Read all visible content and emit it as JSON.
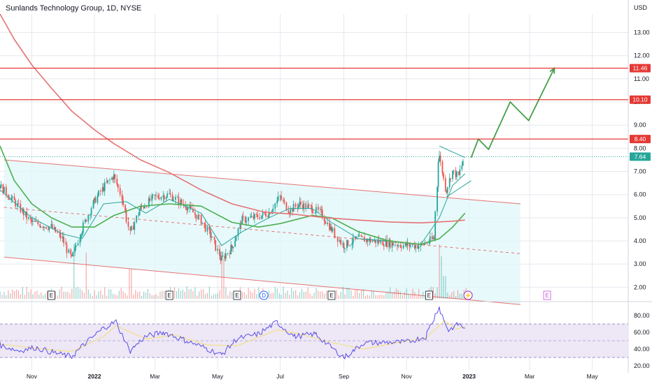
{
  "header": {
    "title": "Sunlands Technology Group, 1D, NYSE",
    "currency": "USD"
  },
  "colors": {
    "up": "#26a69a",
    "down": "#ef5350",
    "sma_short": "#26a69a",
    "ema_long": "#e57373",
    "sma_mid": "#4caf50",
    "resistance": "#e53935",
    "channel_fill": "#e0f7fa",
    "channel_line": "#e57373",
    "projection": "#43a047",
    "rsi": "#5c4ee5",
    "rsi_ma": "#f2e08a",
    "rsi_band": "#ede7f6",
    "grid": "#e6e8ee",
    "axis_text": "#131722",
    "current_tag": "#26a69a",
    "level_tag": "#e53935"
  },
  "chart_data": [
    {
      "type": "candlestick",
      "title": "Sunlands Technology Group, 1D, NYSE",
      "ylabel": "USD",
      "ylim": [
        1.5,
        13.8
      ],
      "xlim": [
        "2021-10-01",
        "2023-06-05"
      ],
      "x_ticks": [
        {
          "date": "2021-11-01",
          "label": "Nov"
        },
        {
          "date": "2022-01-01",
          "label": "2022"
        },
        {
          "date": "2022-03-01",
          "label": "Mar"
        },
        {
          "date": "2022-05-01",
          "label": "May"
        },
        {
          "date": "2022-07-01",
          "label": "Jul"
        },
        {
          "date": "2022-09-01",
          "label": "Sep"
        },
        {
          "date": "2022-11-01",
          "label": "Nov"
        },
        {
          "date": "2023-01-01",
          "label": "2023"
        },
        {
          "date": "2023-03-01",
          "label": "Mar"
        },
        {
          "date": "2023-05-01",
          "label": "May"
        }
      ],
      "y_ticks": [
        2.0,
        3.0,
        4.0,
        5.0,
        6.0,
        7.0,
        8.0,
        9.0,
        10.0,
        11.0,
        12.0,
        13.0
      ],
      "grid": true,
      "series": [
        {
          "kind": "close",
          "points": [
            [
              "2021-10-01",
              6.4
            ],
            [
              "2021-10-15",
              5.7
            ],
            [
              "2021-11-01",
              4.8
            ],
            [
              "2021-11-20",
              4.6
            ],
            [
              "2021-12-01",
              4.1
            ],
            [
              "2021-12-10",
              3.2
            ],
            [
              "2021-12-20",
              4.5
            ],
            [
              "2022-01-01",
              5.7
            ],
            [
              "2022-01-10",
              6.3
            ],
            [
              "2022-01-20",
              6.8
            ],
            [
              "2022-01-28",
              5.9
            ],
            [
              "2022-02-05",
              4.3
            ],
            [
              "2022-02-15",
              5.4
            ],
            [
              "2022-03-01",
              5.9
            ],
            [
              "2022-03-15",
              6.0
            ],
            [
              "2022-04-01",
              5.5
            ],
            [
              "2022-04-15",
              4.9
            ],
            [
              "2022-04-25",
              4.2
            ],
            [
              "2022-05-05",
              3.2
            ],
            [
              "2022-05-15",
              3.7
            ],
            [
              "2022-05-25",
              4.9
            ],
            [
              "2022-06-05",
              5.0
            ],
            [
              "2022-06-20",
              5.2
            ],
            [
              "2022-07-01",
              5.9
            ],
            [
              "2022-07-10",
              5.3
            ],
            [
              "2022-07-20",
              5.6
            ],
            [
              "2022-08-01",
              5.4
            ],
            [
              "2022-08-10",
              5.2
            ],
            [
              "2022-08-20",
              4.5
            ],
            [
              "2022-09-01",
              3.8
            ],
            [
              "2022-09-15",
              4.1
            ],
            [
              "2022-10-01",
              4.0
            ],
            [
              "2022-10-15",
              3.9
            ],
            [
              "2022-11-01",
              3.8
            ],
            [
              "2022-11-15",
              3.8
            ],
            [
              "2022-11-28",
              4.1
            ],
            [
              "2022-12-03",
              7.7
            ],
            [
              "2022-12-10",
              6.2
            ],
            [
              "2022-12-16",
              7.0
            ],
            [
              "2022-12-22",
              6.8
            ],
            [
              "2022-12-28",
              7.64
            ]
          ]
        },
        {
          "kind": "sma_short",
          "points": [
            [
              "2021-10-01",
              6.2
            ],
            [
              "2021-11-01",
              5.0
            ],
            [
              "2021-12-01",
              4.3
            ],
            [
              "2021-12-20",
              4.1
            ],
            [
              "2022-01-10",
              5.6
            ],
            [
              "2022-02-01",
              5.7
            ],
            [
              "2022-02-20",
              5.2
            ],
            [
              "2022-03-15",
              5.8
            ],
            [
              "2022-04-15",
              5.2
            ],
            [
              "2022-05-05",
              3.8
            ],
            [
              "2022-05-25",
              4.4
            ],
            [
              "2022-06-20",
              5.0
            ],
            [
              "2022-07-10",
              5.4
            ],
            [
              "2022-08-01",
              5.4
            ],
            [
              "2022-08-20",
              4.8
            ],
            [
              "2022-09-15",
              4.1
            ],
            [
              "2022-10-15",
              4.0
            ],
            [
              "2022-11-15",
              3.85
            ],
            [
              "2022-12-03",
              5.0
            ],
            [
              "2022-12-16",
              6.4
            ],
            [
              "2022-12-28",
              6.9
            ]
          ]
        },
        {
          "kind": "sma_mid",
          "points": [
            [
              "2021-10-01",
              8.1
            ],
            [
              "2021-10-15",
              6.6
            ],
            [
              "2021-11-01",
              5.6
            ],
            [
              "2021-11-20",
              5.0
            ],
            [
              "2021-12-10",
              4.6
            ],
            [
              "2022-01-01",
              4.6
            ],
            [
              "2022-01-20",
              5.1
            ],
            [
              "2022-02-15",
              5.5
            ],
            [
              "2022-03-15",
              5.6
            ],
            [
              "2022-04-15",
              5.5
            ],
            [
              "2022-05-15",
              4.8
            ],
            [
              "2022-06-10",
              4.6
            ],
            [
              "2022-07-01",
              4.75
            ],
            [
              "2022-08-01",
              5.1
            ],
            [
              "2022-08-20",
              5.0
            ],
            [
              "2022-09-15",
              4.4
            ],
            [
              "2022-10-15",
              4.0
            ],
            [
              "2022-11-15",
              3.85
            ],
            [
              "2022-12-03",
              4.1
            ],
            [
              "2022-12-16",
              4.6
            ],
            [
              "2022-12-28",
              5.2
            ]
          ]
        },
        {
          "kind": "ema_long",
          "points": [
            [
              "2021-10-01",
              13.8
            ],
            [
              "2021-10-15",
              12.7
            ],
            [
              "2021-11-01",
              11.6
            ],
            [
              "2021-11-20",
              10.6
            ],
            [
              "2021-12-10",
              9.6
            ],
            [
              "2022-01-01",
              8.8
            ],
            [
              "2022-01-20",
              8.2
            ],
            [
              "2022-02-15",
              7.5
            ],
            [
              "2022-03-15",
              6.95
            ],
            [
              "2022-04-15",
              6.2
            ],
            [
              "2022-05-15",
              5.6
            ],
            [
              "2022-06-15",
              5.25
            ],
            [
              "2022-07-15",
              5.15
            ],
            [
              "2022-08-15",
              5.0
            ],
            [
              "2022-09-15",
              4.9
            ],
            [
              "2022-10-15",
              4.82
            ],
            [
              "2022-11-15",
              4.78
            ],
            [
              "2022-12-15",
              4.85
            ],
            [
              "2022-12-28",
              4.9
            ]
          ]
        }
      ],
      "horizontal_levels": [
        {
          "value": 11.46,
          "label": "11.46"
        },
        {
          "value": 10.1,
          "label": "10.10"
        },
        {
          "value": 8.4,
          "label": "8.40"
        }
      ],
      "current_price": {
        "value": 7.64,
        "label": "7.64"
      },
      "channel": {
        "upper": [
          [
            "2021-10-05",
            7.5
          ],
          [
            "2023-02-20",
            5.6
          ]
        ],
        "middle": [
          [
            "2021-10-05",
            5.45
          ],
          [
            "2023-02-20",
            3.45
          ]
        ],
        "lower": [
          [
            "2021-10-05",
            3.3
          ],
          [
            "2023-02-20",
            1.25
          ]
        ]
      },
      "triangle": {
        "upper": [
          [
            "2022-12-03",
            8.1
          ],
          [
            "2022-12-28",
            7.6
          ]
        ],
        "lower": [
          [
            "2022-12-10",
            5.9
          ],
          [
            "2023-01-03",
            6.6
          ]
        ]
      },
      "projection": [
        [
          "2023-01-03",
          7.6
        ],
        [
          "2023-01-10",
          8.4
        ],
        [
          "2023-01-20",
          7.95
        ],
        [
          "2023-02-10",
          10.0
        ],
        [
          "2023-02-28",
          9.2
        ],
        [
          "2023-03-25",
          11.46
        ]
      ],
      "volume_spikes": [
        [
          "2021-12-12",
          1.0
        ],
        [
          "2021-12-24",
          0.85
        ],
        [
          "2022-02-05",
          0.55
        ],
        [
          "2022-05-06",
          0.75
        ],
        [
          "2022-12-03",
          1.0
        ],
        [
          "2022-12-05",
          0.78
        ],
        [
          "2022-12-08",
          0.42
        ]
      ],
      "event_markers": [
        {
          "date": "2021-11-20",
          "label": "E"
        },
        {
          "date": "2022-03-15",
          "label": "E"
        },
        {
          "date": "2022-05-20",
          "label": "E"
        },
        {
          "date": "2022-06-15",
          "label": "D"
        },
        {
          "date": "2022-08-20",
          "label": "E"
        },
        {
          "date": "2022-11-23",
          "label": "E"
        },
        {
          "date": "2022-12-31",
          "label": "⚡"
        },
        {
          "date": "2023-03-18",
          "label": "E"
        }
      ]
    },
    {
      "type": "line",
      "ylim": [
        15,
        90
      ],
      "y_ticks": [
        20.0,
        40.0,
        60.0,
        80.0
      ],
      "bands": [
        70,
        50,
        30
      ],
      "series": [
        {
          "kind": "rsi",
          "points": [
            [
              "2021-10-01",
              45
            ],
            [
              "2021-10-20",
              38
            ],
            [
              "2021-11-05",
              42
            ],
            [
              "2021-11-25",
              35
            ],
            [
              "2021-12-10",
              31
            ],
            [
              "2021-12-22",
              45
            ],
            [
              "2022-01-10",
              65
            ],
            [
              "2022-01-22",
              73
            ],
            [
              "2022-02-05",
              38
            ],
            [
              "2022-02-20",
              55
            ],
            [
              "2022-03-10",
              60
            ],
            [
              "2022-04-01",
              50
            ],
            [
              "2022-04-20",
              41
            ],
            [
              "2022-05-05",
              33
            ],
            [
              "2022-05-20",
              52
            ],
            [
              "2022-06-10",
              58
            ],
            [
              "2022-06-28",
              72
            ],
            [
              "2022-07-15",
              55
            ],
            [
              "2022-08-05",
              58
            ],
            [
              "2022-08-20",
              42
            ],
            [
              "2022-09-02",
              30
            ],
            [
              "2022-09-20",
              47
            ],
            [
              "2022-10-10",
              48
            ],
            [
              "2022-11-01",
              48
            ],
            [
              "2022-11-20",
              55
            ],
            [
              "2022-12-03",
              90
            ],
            [
              "2022-12-12",
              62
            ],
            [
              "2022-12-22",
              70
            ],
            [
              "2022-12-28",
              65
            ]
          ]
        },
        {
          "kind": "rsi_ma",
          "points": [
            [
              "2021-10-01",
              46
            ],
            [
              "2021-11-05",
              41
            ],
            [
              "2021-12-10",
              37
            ],
            [
              "2022-01-10",
              55
            ],
            [
              "2022-01-22",
              68
            ],
            [
              "2022-02-20",
              52
            ],
            [
              "2022-03-20",
              57
            ],
            [
              "2022-04-20",
              45
            ],
            [
              "2022-05-20",
              44
            ],
            [
              "2022-06-28",
              63
            ],
            [
              "2022-07-20",
              58
            ],
            [
              "2022-08-20",
              48
            ],
            [
              "2022-09-20",
              40
            ],
            [
              "2022-10-20",
              47
            ],
            [
              "2022-11-20",
              53
            ],
            [
              "2022-12-08",
              74
            ],
            [
              "2022-12-20",
              64
            ],
            [
              "2022-12-28",
              67
            ]
          ]
        }
      ]
    }
  ]
}
